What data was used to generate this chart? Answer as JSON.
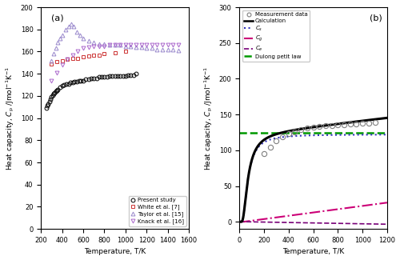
{
  "fig_width": 5.0,
  "fig_height": 3.25,
  "dpi": 100,
  "panel_a": {
    "label": "(a)",
    "xlabel": "Temperature, T/K",
    "xlim": [
      200,
      1600
    ],
    "ylim": [
      0,
      200
    ],
    "xticks": [
      200,
      400,
      600,
      800,
      1000,
      1200,
      1400,
      1600
    ],
    "yticks": [
      0,
      20,
      40,
      60,
      80,
      100,
      120,
      140,
      160,
      180,
      200
    ],
    "present_study": {
      "T": [
        250,
        260,
        270,
        280,
        290,
        300,
        310,
        320,
        330,
        340,
        350,
        360,
        380,
        400,
        420,
        440,
        460,
        480,
        500,
        520,
        540,
        560,
        580,
        600,
        625,
        650,
        675,
        700,
        725,
        750,
        775,
        800,
        825,
        850,
        875,
        900,
        925,
        950,
        975,
        1000,
        1025,
        1050,
        1075,
        1100
      ],
      "Cp": [
        109,
        111,
        113,
        115,
        117,
        119,
        121,
        122,
        123,
        124,
        125,
        126,
        128,
        129,
        130,
        131,
        131,
        132,
        132,
        133,
        133,
        134,
        134,
        134,
        135,
        135,
        136,
        136,
        136,
        137,
        137,
        137,
        137,
        138,
        138,
        138,
        138,
        138,
        138,
        138,
        139,
        139,
        139,
        140
      ],
      "color": "black",
      "marker": "o",
      "label": "Present study"
    },
    "white": {
      "T": [
        300,
        350,
        400,
        450,
        500,
        550,
        600,
        650,
        700,
        750,
        800,
        900,
        1000
      ],
      "Cp": [
        149,
        151,
        152,
        153,
        154,
        154,
        155,
        156,
        157,
        157,
        158,
        159,
        160
      ],
      "color": "#cc3333",
      "marker": "s",
      "label": "White et al. [7]"
    },
    "taylor": {
      "T": [
        300,
        320,
        340,
        360,
        380,
        400,
        430,
        460,
        490,
        510,
        540,
        570,
        600,
        650,
        700,
        750,
        800,
        850,
        900,
        950,
        1000,
        1050,
        1100,
        1150,
        1200,
        1250,
        1300,
        1350,
        1400,
        1450,
        1500
      ],
      "Cp": [
        152,
        158,
        163,
        168,
        172,
        175,
        180,
        183,
        185,
        183,
        178,
        175,
        172,
        170,
        168,
        167,
        167,
        166,
        166,
        166,
        165,
        165,
        164,
        164,
        163,
        163,
        162,
        162,
        162,
        162,
        161
      ],
      "color": "#9988cc",
      "marker": "^",
      "label": "Taylor et al. [15]"
    },
    "knack": {
      "T": [
        300,
        350,
        400,
        450,
        500,
        550,
        600,
        650,
        700,
        750,
        800,
        850,
        900,
        950,
        1000,
        1050,
        1100,
        1150,
        1200,
        1250,
        1300,
        1350,
        1400,
        1450,
        1500
      ],
      "Cp": [
        134,
        141,
        148,
        153,
        157,
        160,
        163,
        164,
        165,
        165,
        165,
        166,
        166,
        166,
        166,
        166,
        166,
        166,
        166,
        166,
        166,
        166,
        166,
        166,
        166
      ],
      "color": "#aa66cc",
      "marker": "v",
      "label": "Knack et al. [16]"
    }
  },
  "panel_b": {
    "label": "(b)",
    "xlabel": "Temperature, T/K",
    "xlim": [
      0,
      1200
    ],
    "ylim": [
      -10,
      300
    ],
    "xticks": [
      0,
      200,
      400,
      600,
      800,
      1000,
      1200
    ],
    "yticks": [
      0,
      50,
      100,
      150,
      200,
      250,
      300
    ],
    "dulong_petit": 124.7,
    "dulong_petit_color": "#009900",
    "calc_color": "black",
    "cs_color": "#3333bb",
    "cg_color": "#cc0077",
    "ce_color": "#770077",
    "meas_color": "gray",
    "T_meas": [
      200,
      250,
      300,
      350,
      400,
      450,
      500,
      550,
      600,
      650,
      700,
      750,
      800,
      850,
      900,
      950,
      1000,
      1050,
      1100
    ],
    "Cp_meas": [
      95,
      104,
      113,
      119,
      123,
      126,
      129,
      131,
      132,
      133,
      134,
      135,
      136,
      136,
      137,
      137,
      138,
      138,
      139
    ]
  }
}
